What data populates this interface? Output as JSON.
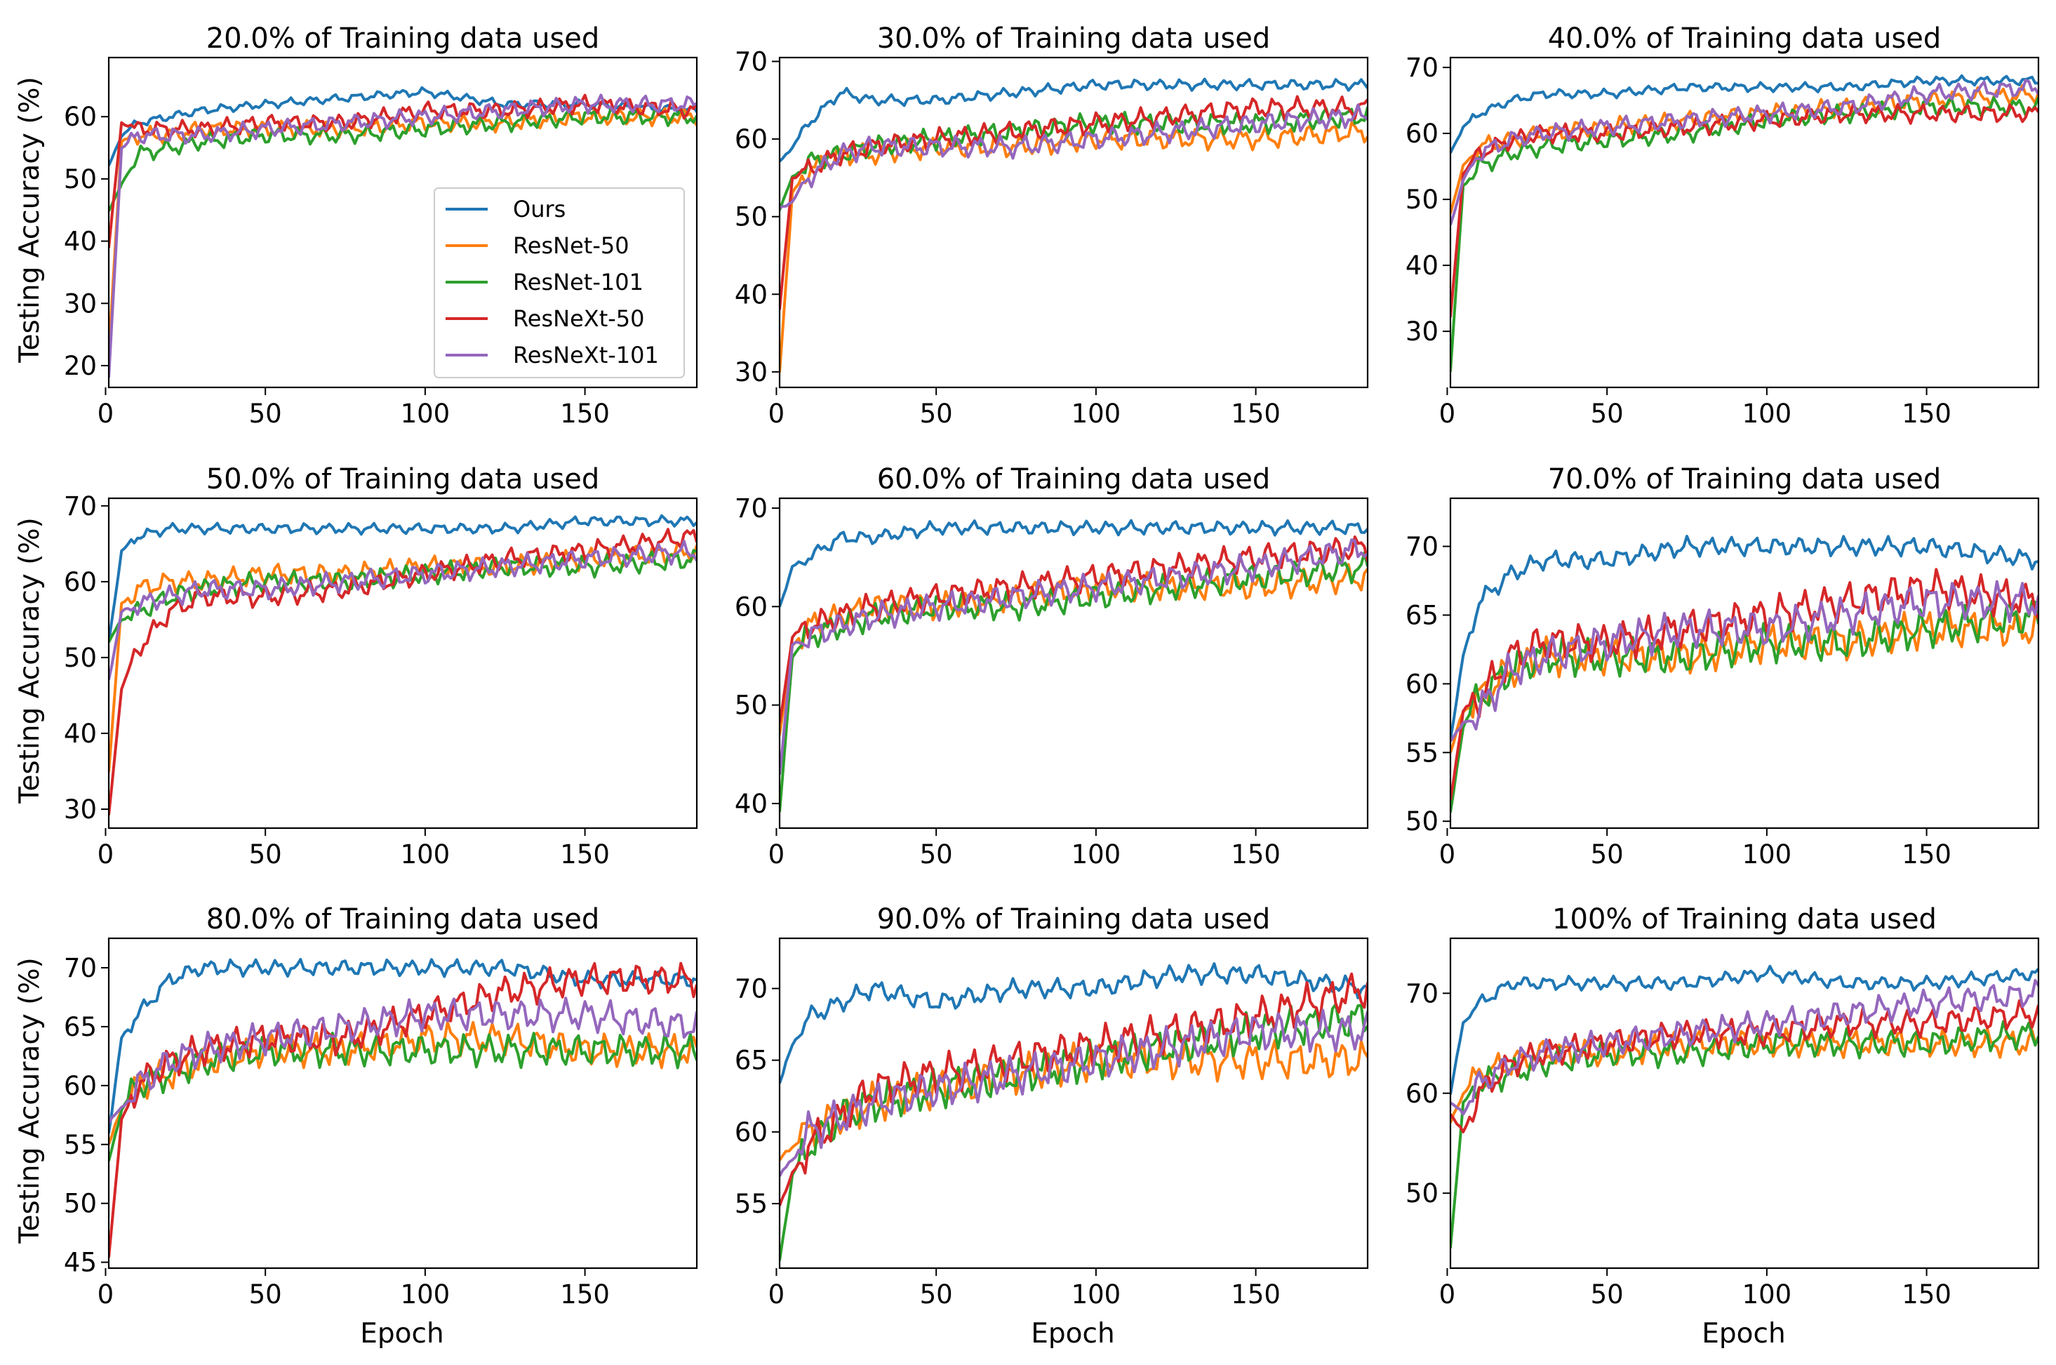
{
  "figure": {
    "xlabel": "Epoch",
    "ylabel": "Testing Accuracy (%)"
  },
  "legend": {
    "entries": [
      "Ours",
      "ResNet-50",
      "ResNet-101",
      "ResNeXt-50",
      "ResNeXt-101"
    ],
    "placement": "center-right of first panel"
  },
  "colors": {
    "Ours": "#1f77b4",
    "ResNet-50": "#ff7f0e",
    "ResNet-101": "#2ca02c",
    "ResNeXt-50": "#d62728",
    "ResNeXt-101": "#9467bd"
  },
  "chart_data": [
    {
      "type": "line",
      "title": "20.0% of Training data used",
      "xlim": [
        1,
        185
      ],
      "ylim": [
        16.5,
        69.5
      ],
      "xticks": [
        0,
        50,
        100,
        150
      ],
      "yticks": [
        20,
        30,
        40,
        50,
        60
      ],
      "x": [
        1,
        5,
        10,
        20,
        30,
        50,
        75,
        100,
        125,
        150,
        185
      ],
      "series": [
        {
          "name": "Ours",
          "values": [
            52,
            57,
            59,
            60,
            61,
            62,
            63,
            64,
            62,
            62,
            61
          ]
        },
        {
          "name": "ResNet-50",
          "values": [
            22,
            56,
            57,
            57,
            58,
            58,
            58,
            59,
            59,
            60,
            60
          ]
        },
        {
          "name": "ResNet-101",
          "values": [
            45,
            49,
            54,
            55,
            56,
            57,
            57,
            58,
            59,
            60,
            60
          ]
        },
        {
          "name": "ResNeXt-50",
          "values": [
            39,
            59,
            58,
            58,
            58,
            59,
            59,
            61,
            61,
            62,
            61
          ]
        },
        {
          "name": "ResNeXt-101",
          "values": [
            18,
            55,
            57,
            57,
            57,
            58,
            59,
            60,
            61,
            62,
            62
          ]
        }
      ]
    },
    {
      "type": "line",
      "title": "30.0% of Training data used",
      "xlim": [
        1,
        185
      ],
      "ylim": [
        28,
        70.5
      ],
      "xticks": [
        0,
        50,
        100,
        150
      ],
      "yticks": [
        30,
        40,
        50,
        60,
        70
      ],
      "x": [
        1,
        5,
        10,
        20,
        30,
        50,
        75,
        100,
        125,
        150,
        185
      ],
      "series": [
        {
          "name": "Ours",
          "values": [
            57,
            59,
            62,
            66,
            65,
            65,
            66,
            67,
            67,
            67,
            67
          ]
        },
        {
          "name": "ResNet-50",
          "values": [
            30,
            53,
            56,
            58,
            58,
            59,
            59,
            60,
            60,
            60,
            61
          ]
        },
        {
          "name": "ResNet-101",
          "values": [
            51,
            55,
            57,
            58,
            59,
            60,
            61,
            62,
            62,
            62,
            63
          ]
        },
        {
          "name": "ResNeXt-50",
          "values": [
            38,
            55,
            56,
            58,
            59,
            60,
            61,
            62,
            63,
            64,
            64
          ]
        },
        {
          "name": "ResNeXt-101",
          "values": [
            51,
            52,
            55,
            58,
            59,
            59,
            59,
            60,
            61,
            62,
            63
          ]
        }
      ]
    },
    {
      "type": "line",
      "title": "40.0% of Training data used",
      "xlim": [
        1,
        185
      ],
      "ylim": [
        21.5,
        71.5
      ],
      "xticks": [
        0,
        50,
        100,
        150
      ],
      "yticks": [
        30,
        40,
        50,
        60,
        70
      ],
      "x": [
        1,
        5,
        10,
        20,
        30,
        50,
        75,
        100,
        125,
        150,
        185
      ],
      "series": [
        {
          "name": "Ours",
          "values": [
            57,
            61,
            63,
            65,
            66,
            66,
            67,
            67,
            67,
            68,
            68
          ]
        },
        {
          "name": "ResNet-50",
          "values": [
            48,
            55,
            58,
            59,
            60,
            61,
            62,
            63,
            64,
            65,
            66
          ]
        },
        {
          "name": "ResNet-101",
          "values": [
            24,
            52,
            55,
            57,
            58,
            59,
            60,
            62,
            63,
            64,
            64
          ]
        },
        {
          "name": "ResNeXt-50",
          "values": [
            32,
            54,
            57,
            59,
            60,
            60,
            61,
            62,
            63,
            63,
            63
          ]
        },
        {
          "name": "ResNeXt-101",
          "values": [
            46,
            53,
            57,
            59,
            60,
            61,
            62,
            63,
            64,
            66,
            67
          ]
        }
      ]
    },
    {
      "type": "line",
      "title": "50.0% of Training data used",
      "xlim": [
        1,
        185
      ],
      "ylim": [
        27.5,
        71
      ],
      "xticks": [
        0,
        50,
        100,
        150
      ],
      "yticks": [
        30,
        40,
        50,
        60,
        70
      ],
      "x": [
        1,
        5,
        10,
        20,
        30,
        50,
        75,
        100,
        125,
        150,
        185
      ],
      "series": [
        {
          "name": "Ours",
          "values": [
            52,
            64,
            66,
            67,
            67,
            67,
            67,
            67,
            67,
            68,
            68
          ]
        },
        {
          "name": "ResNet-50",
          "values": [
            35,
            57,
            59,
            60,
            60,
            61,
            61,
            62,
            62,
            63,
            64
          ]
        },
        {
          "name": "ResNet-101",
          "values": [
            52,
            55,
            56,
            58,
            59,
            60,
            60,
            61,
            62,
            62,
            63
          ]
        },
        {
          "name": "ResNeXt-50",
          "values": [
            29,
            46,
            51,
            56,
            58,
            58,
            59,
            61,
            63,
            64,
            66
          ]
        },
        {
          "name": "ResNeXt-101",
          "values": [
            47,
            56,
            57,
            58,
            59,
            59,
            60,
            61,
            62,
            63,
            64
          ]
        }
      ]
    },
    {
      "type": "line",
      "title": "60.0% of Training data used",
      "xlim": [
        1,
        185
      ],
      "ylim": [
        37.5,
        71
      ],
      "xticks": [
        0,
        50,
        100,
        150
      ],
      "yticks": [
        40,
        50,
        60,
        70
      ],
      "x": [
        1,
        5,
        10,
        20,
        30,
        50,
        75,
        100,
        125,
        150,
        185
      ],
      "series": [
        {
          "name": "Ours",
          "values": [
            60,
            64,
            65,
            67,
            67,
            68,
            68,
            68,
            68,
            68,
            68
          ]
        },
        {
          "name": "ResNet-50",
          "values": [
            47,
            56,
            58,
            59,
            60,
            60,
            61,
            62,
            62,
            62,
            63
          ]
        },
        {
          "name": "ResNet-101",
          "values": [
            39,
            55,
            57,
            58,
            59,
            60,
            60,
            61,
            62,
            63,
            64
          ]
        },
        {
          "name": "ResNeXt-50",
          "values": [
            48,
            57,
            58,
            59,
            60,
            61,
            62,
            63,
            64,
            65,
            66
          ]
        },
        {
          "name": "ResNeXt-101",
          "values": [
            43,
            56,
            57,
            58,
            59,
            60,
            61,
            62,
            63,
            64,
            66
          ]
        }
      ]
    },
    {
      "type": "line",
      "title": "70.0% of Training data used",
      "xlim": [
        1,
        185
      ],
      "ylim": [
        49.5,
        73.5
      ],
      "xticks": [
        0,
        50,
        100,
        150
      ],
      "yticks": [
        50,
        55,
        60,
        65,
        70
      ],
      "x": [
        1,
        5,
        10,
        20,
        30,
        50,
        75,
        100,
        125,
        150,
        185
      ],
      "series": [
        {
          "name": "Ours",
          "values": [
            56,
            62,
            66,
            68,
            69,
            69,
            70,
            70,
            70,
            70,
            69
          ]
        },
        {
          "name": "ResNet-50",
          "values": [
            55,
            58,
            59,
            61,
            62,
            62,
            62,
            63,
            63,
            64,
            64
          ]
        },
        {
          "name": "ResNet-101",
          "values": [
            50.5,
            57,
            59,
            61,
            62,
            62,
            62,
            63,
            63,
            64,
            65
          ]
        },
        {
          "name": "ResNeXt-50",
          "values": [
            51.5,
            58,
            59,
            62,
            63,
            63,
            64,
            65,
            66,
            67,
            66
          ]
        },
        {
          "name": "ResNeXt-101",
          "values": [
            56,
            57,
            58,
            61,
            62,
            63,
            64,
            64,
            65,
            66,
            66
          ]
        }
      ]
    },
    {
      "type": "line",
      "title": "80.0% of Training data used",
      "xlim": [
        1,
        185
      ],
      "ylim": [
        44.5,
        72.5
      ],
      "xticks": [
        0,
        50,
        100,
        150
      ],
      "yticks": [
        45,
        50,
        55,
        60,
        65,
        70
      ],
      "x": [
        1,
        5,
        10,
        20,
        30,
        50,
        75,
        100,
        125,
        150,
        185
      ],
      "series": [
        {
          "name": "Ours",
          "values": [
            56,
            64,
            66,
            69,
            70,
            70,
            70,
            70,
            70,
            69,
            69
          ]
        },
        {
          "name": "ResNet-50",
          "values": [
            55,
            58,
            60,
            61,
            62,
            63,
            63,
            64,
            64,
            63,
            63
          ]
        },
        {
          "name": "ResNet-101",
          "values": [
            53.5,
            58,
            60,
            61,
            62,
            63,
            63,
            63,
            63,
            63,
            63
          ]
        },
        {
          "name": "ResNeXt-50",
          "values": [
            45.5,
            57,
            60,
            62,
            63,
            64,
            64,
            66,
            68,
            69,
            69
          ]
        },
        {
          "name": "ResNeXt-101",
          "values": [
            57,
            58,
            60,
            62,
            63,
            64,
            65,
            66,
            66,
            66,
            65
          ]
        }
      ]
    },
    {
      "type": "line",
      "title": "90.0% of Training data used",
      "xlim": [
        1,
        185
      ],
      "ylim": [
        50.5,
        73.5
      ],
      "xticks": [
        0,
        50,
        100,
        150
      ],
      "yticks": [
        55,
        60,
        65,
        70
      ],
      "x": [
        1,
        5,
        10,
        20,
        30,
        50,
        75,
        100,
        125,
        150,
        185
      ],
      "series": [
        {
          "name": "Ours",
          "values": [
            63.5,
            66,
            68,
            69,
            70,
            69,
            70,
            70,
            71,
            71,
            70
          ]
        },
        {
          "name": "ResNet-50",
          "values": [
            58,
            59,
            60,
            61,
            62,
            63,
            64,
            65,
            65,
            65,
            65
          ]
        },
        {
          "name": "ResNet-101",
          "values": [
            51,
            57,
            59,
            61,
            62,
            63,
            64,
            65,
            66,
            67,
            68
          ]
        },
        {
          "name": "ResNeXt-50",
          "values": [
            55,
            57,
            59,
            61,
            63,
            64,
            65,
            66,
            67,
            68,
            70
          ]
        },
        {
          "name": "ResNeXt-101",
          "values": [
            57,
            58,
            60,
            61,
            62,
            63,
            64,
            65,
            66,
            67,
            67
          ]
        }
      ]
    },
    {
      "type": "line",
      "title": "100% of Training data used",
      "xlim": [
        1,
        185
      ],
      "ylim": [
        42.5,
        75.5
      ],
      "xticks": [
        0,
        50,
        100,
        150
      ],
      "yticks": [
        50,
        60,
        70
      ],
      "x": [
        1,
        5,
        10,
        20,
        30,
        50,
        75,
        100,
        125,
        150,
        185
      ],
      "series": [
        {
          "name": "Ours",
          "values": [
            60,
            67,
            69,
            71,
            71,
            71,
            71,
            72,
            71,
            71,
            72
          ]
        },
        {
          "name": "ResNet-50",
          "values": [
            57,
            60,
            62,
            63,
            64,
            64,
            65,
            65,
            65,
            65,
            65
          ]
        },
        {
          "name": "ResNet-101",
          "values": [
            44.5,
            59,
            61,
            62,
            63,
            64,
            64,
            65,
            65,
            65,
            66
          ]
        },
        {
          "name": "ResNeXt-50",
          "values": [
            58,
            56,
            60,
            63,
            64,
            65,
            66,
            66,
            67,
            67,
            68
          ]
        },
        {
          "name": "ResNeXt-101",
          "values": [
            59,
            58,
            61,
            63,
            64,
            65,
            66,
            67,
            68,
            69,
            70
          ]
        }
      ]
    }
  ]
}
